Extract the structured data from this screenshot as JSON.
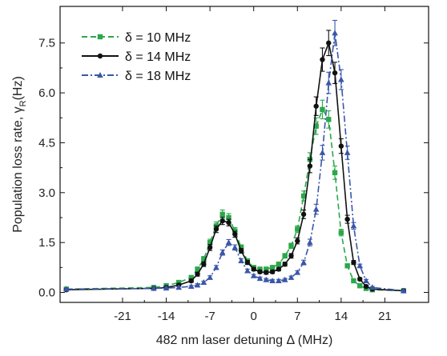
{
  "chart_data": {
    "type": "line",
    "xlabel": "482 nm laser detuning Δ (MHz)",
    "ylabel": "Population loss rate, γR(Hz)",
    "ylabel_main": "Population loss rate, γ",
    "ylabel_sub": "R",
    "ylabel_tail": "(Hz)",
    "xlim": [
      -31,
      28
    ],
    "ylim": [
      -0.3,
      8.6
    ],
    "xticks": [
      -21,
      -14,
      -7,
      0,
      7,
      14,
      21
    ],
    "yticks": [
      0.0,
      1.5,
      3.0,
      4.5,
      6.0,
      7.5
    ],
    "xtick_labels": [
      "-21",
      "-14",
      "-7",
      "0",
      "7",
      "14",
      "21"
    ],
    "ytick_labels": [
      "0.0",
      "1.5",
      "3.0",
      "4.5",
      "6.0",
      "7.5"
    ],
    "legend_position": "upper-left",
    "series": [
      {
        "name": "δ = 10 MHz",
        "color": "#2aa84a",
        "line": "dashed",
        "marker": "square",
        "x": [
          -30,
          -16,
          -14,
          -12,
          -10,
          -9,
          -8,
          -7,
          -6,
          -5,
          -4,
          -3,
          -2,
          -1,
          0,
          1,
          2,
          3,
          4,
          5,
          6,
          7,
          8,
          9,
          10,
          11,
          12,
          13,
          14,
          15,
          16,
          17,
          18,
          19,
          24
        ],
        "y": [
          0.1,
          0.15,
          0.2,
          0.3,
          0.45,
          0.7,
          1.0,
          1.5,
          2.0,
          2.35,
          2.25,
          1.85,
          1.35,
          0.95,
          0.75,
          0.7,
          0.7,
          0.75,
          0.85,
          1.1,
          1.4,
          1.9,
          2.9,
          4.0,
          5.0,
          5.5,
          5.2,
          3.6,
          1.8,
          0.8,
          0.35,
          0.2,
          0.12,
          0.08,
          0.05
        ],
        "err": [
          0.03,
          0.03,
          0.03,
          0.04,
          0.05,
          0.06,
          0.08,
          0.1,
          0.12,
          0.13,
          0.12,
          0.1,
          0.08,
          0.06,
          0.05,
          0.05,
          0.05,
          0.05,
          0.06,
          0.07,
          0.08,
          0.1,
          0.15,
          0.2,
          0.25,
          0.28,
          0.26,
          0.2,
          0.1,
          0.05,
          0.04,
          0.03,
          0.03,
          0.02,
          0.02
        ]
      },
      {
        "name": "δ = 14 MHz",
        "color": "#111111",
        "line": "solid",
        "marker": "circle",
        "x": [
          -30,
          -16,
          -14,
          -12,
          -10,
          -9,
          -8,
          -7,
          -6,
          -5,
          -4,
          -3,
          -2,
          -1,
          0,
          1,
          2,
          3,
          4,
          5,
          6,
          7,
          8,
          9,
          10,
          11,
          12,
          13,
          14,
          15,
          16,
          17,
          18,
          19,
          24
        ],
        "y": [
          0.08,
          0.12,
          0.15,
          0.22,
          0.35,
          0.55,
          0.85,
          1.35,
          1.9,
          2.15,
          2.1,
          1.75,
          1.25,
          0.9,
          0.7,
          0.62,
          0.6,
          0.62,
          0.7,
          0.85,
          1.1,
          1.55,
          2.35,
          3.8,
          5.6,
          7.0,
          7.5,
          6.6,
          4.4,
          2.2,
          0.9,
          0.4,
          0.18,
          0.1,
          0.05
        ],
        "err": [
          0.03,
          0.03,
          0.03,
          0.04,
          0.05,
          0.06,
          0.07,
          0.09,
          0.1,
          0.11,
          0.1,
          0.09,
          0.07,
          0.06,
          0.05,
          0.05,
          0.05,
          0.05,
          0.05,
          0.06,
          0.07,
          0.09,
          0.13,
          0.2,
          0.28,
          0.35,
          0.38,
          0.32,
          0.22,
          0.12,
          0.06,
          0.04,
          0.03,
          0.03,
          0.02
        ]
      },
      {
        "name": "δ = 18 MHz",
        "color": "#3a56a8",
        "line": "dashdot",
        "marker": "triangle",
        "x": [
          -30,
          -16,
          -14,
          -12,
          -10,
          -9,
          -8,
          -7,
          -6,
          -5,
          -4,
          -3,
          -2,
          -1,
          0,
          1,
          2,
          3,
          4,
          5,
          6,
          7,
          8,
          9,
          10,
          11,
          12,
          13,
          14,
          15,
          16,
          17,
          18,
          19,
          24
        ],
        "y": [
          0.1,
          0.12,
          0.13,
          0.15,
          0.18,
          0.22,
          0.3,
          0.45,
          0.75,
          1.2,
          1.5,
          1.35,
          0.95,
          0.65,
          0.5,
          0.42,
          0.38,
          0.35,
          0.35,
          0.38,
          0.45,
          0.6,
          0.9,
          1.5,
          2.5,
          4.2,
          6.3,
          7.8,
          6.4,
          4.2,
          2.0,
          0.8,
          0.35,
          0.15,
          0.05
        ],
        "err": [
          0.03,
          0.03,
          0.03,
          0.03,
          0.03,
          0.04,
          0.04,
          0.05,
          0.06,
          0.08,
          0.09,
          0.08,
          0.06,
          0.05,
          0.04,
          0.04,
          0.04,
          0.04,
          0.04,
          0.04,
          0.04,
          0.05,
          0.07,
          0.1,
          0.15,
          0.22,
          0.32,
          0.38,
          0.3,
          0.2,
          0.1,
          0.05,
          0.04,
          0.03,
          0.02
        ]
      }
    ]
  }
}
